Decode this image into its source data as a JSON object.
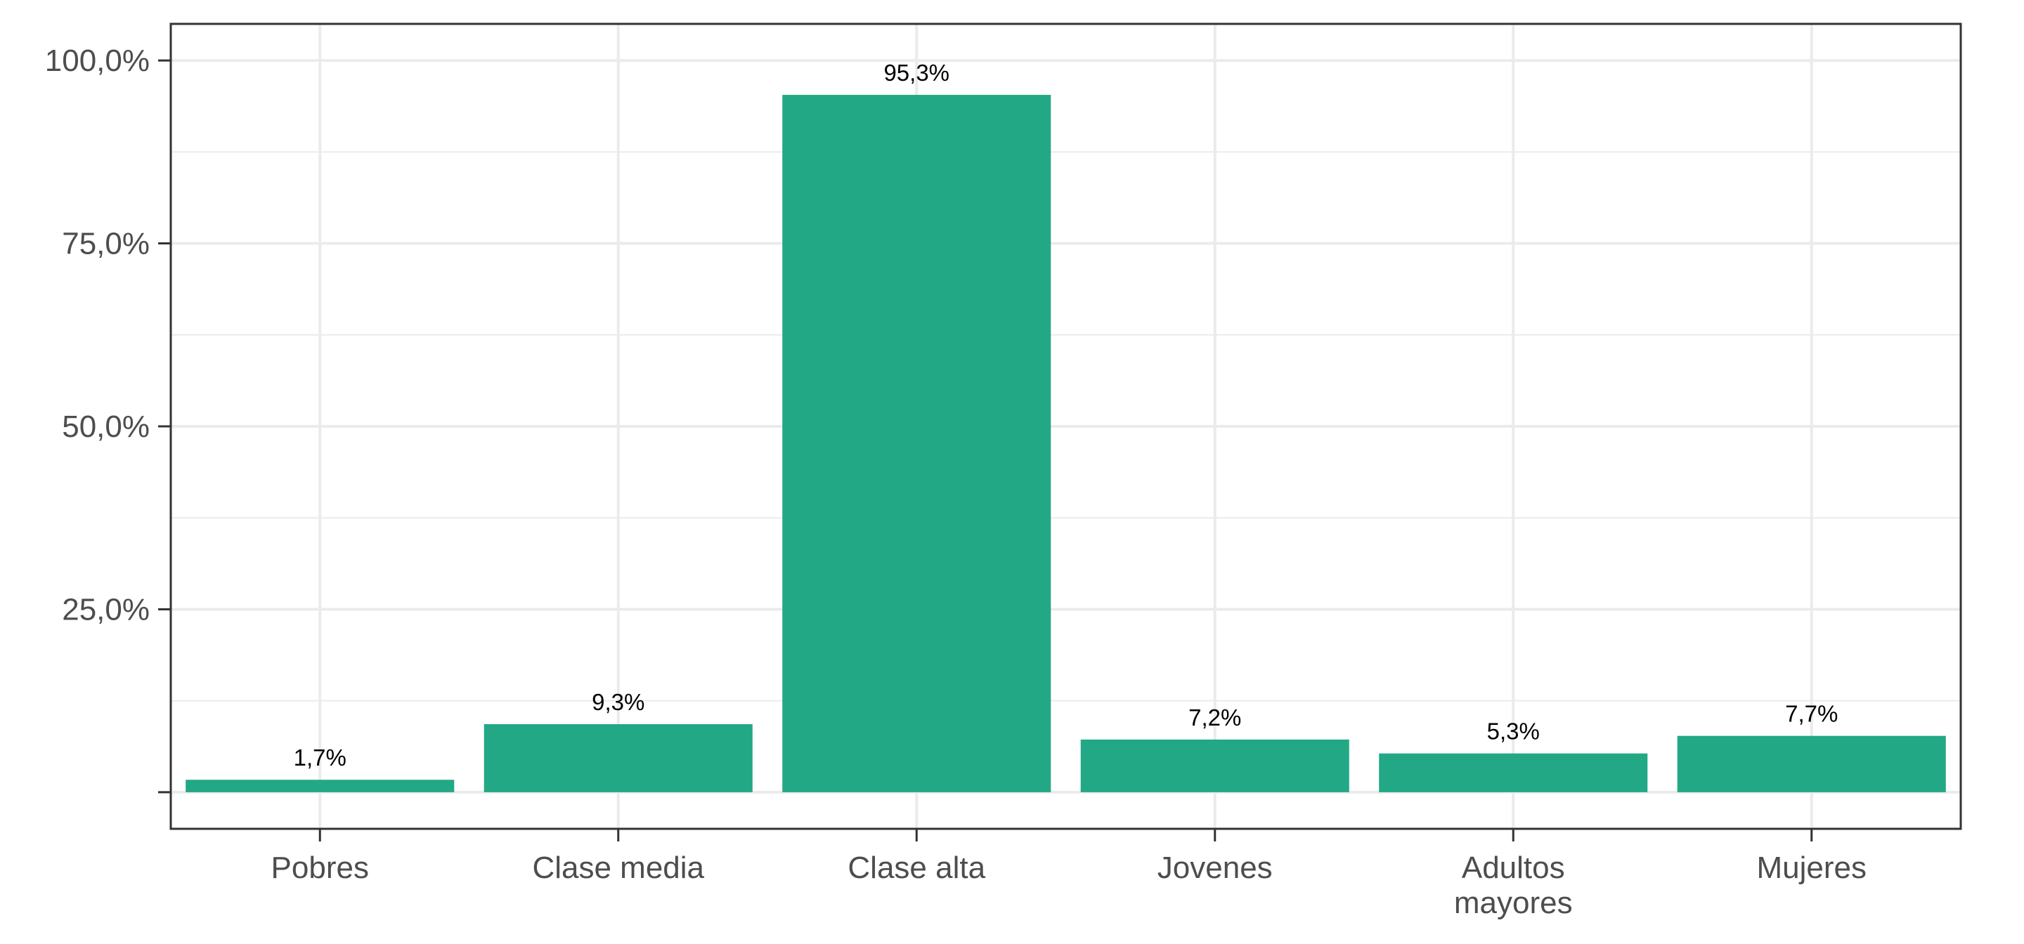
{
  "chart_data": {
    "type": "bar",
    "title": "",
    "xlabel": "",
    "ylabel": "",
    "categories": [
      [
        "Pobres"
      ],
      [
        "Clase media"
      ],
      [
        "Clase alta"
      ],
      [
        "Jovenes"
      ],
      [
        "Adultos",
        "mayores"
      ],
      [
        "Mujeres"
      ]
    ],
    "values": [
      1.7,
      9.3,
      95.3,
      7.2,
      5.3,
      7.7
    ],
    "value_labels": [
      "1,7%",
      "9,3%",
      "95,3%",
      "7,2%",
      "5,3%",
      "7,7%"
    ],
    "y_ticks": [
      {
        "value": 0,
        "label": ""
      },
      {
        "value": 25,
        "label": "25,0%"
      },
      {
        "value": 50,
        "label": "50,0%"
      },
      {
        "value": 75,
        "label": "75,0%"
      },
      {
        "value": 100,
        "label": "100,0%"
      }
    ],
    "ylim": [
      -5,
      105
    ],
    "grid": true,
    "legend": "none",
    "colors": {
      "bar": "#22a884",
      "grid": "#ebebeb",
      "frame": "#333333",
      "tick_text": "#4d4d4d",
      "data_label_text": "#000000"
    }
  }
}
